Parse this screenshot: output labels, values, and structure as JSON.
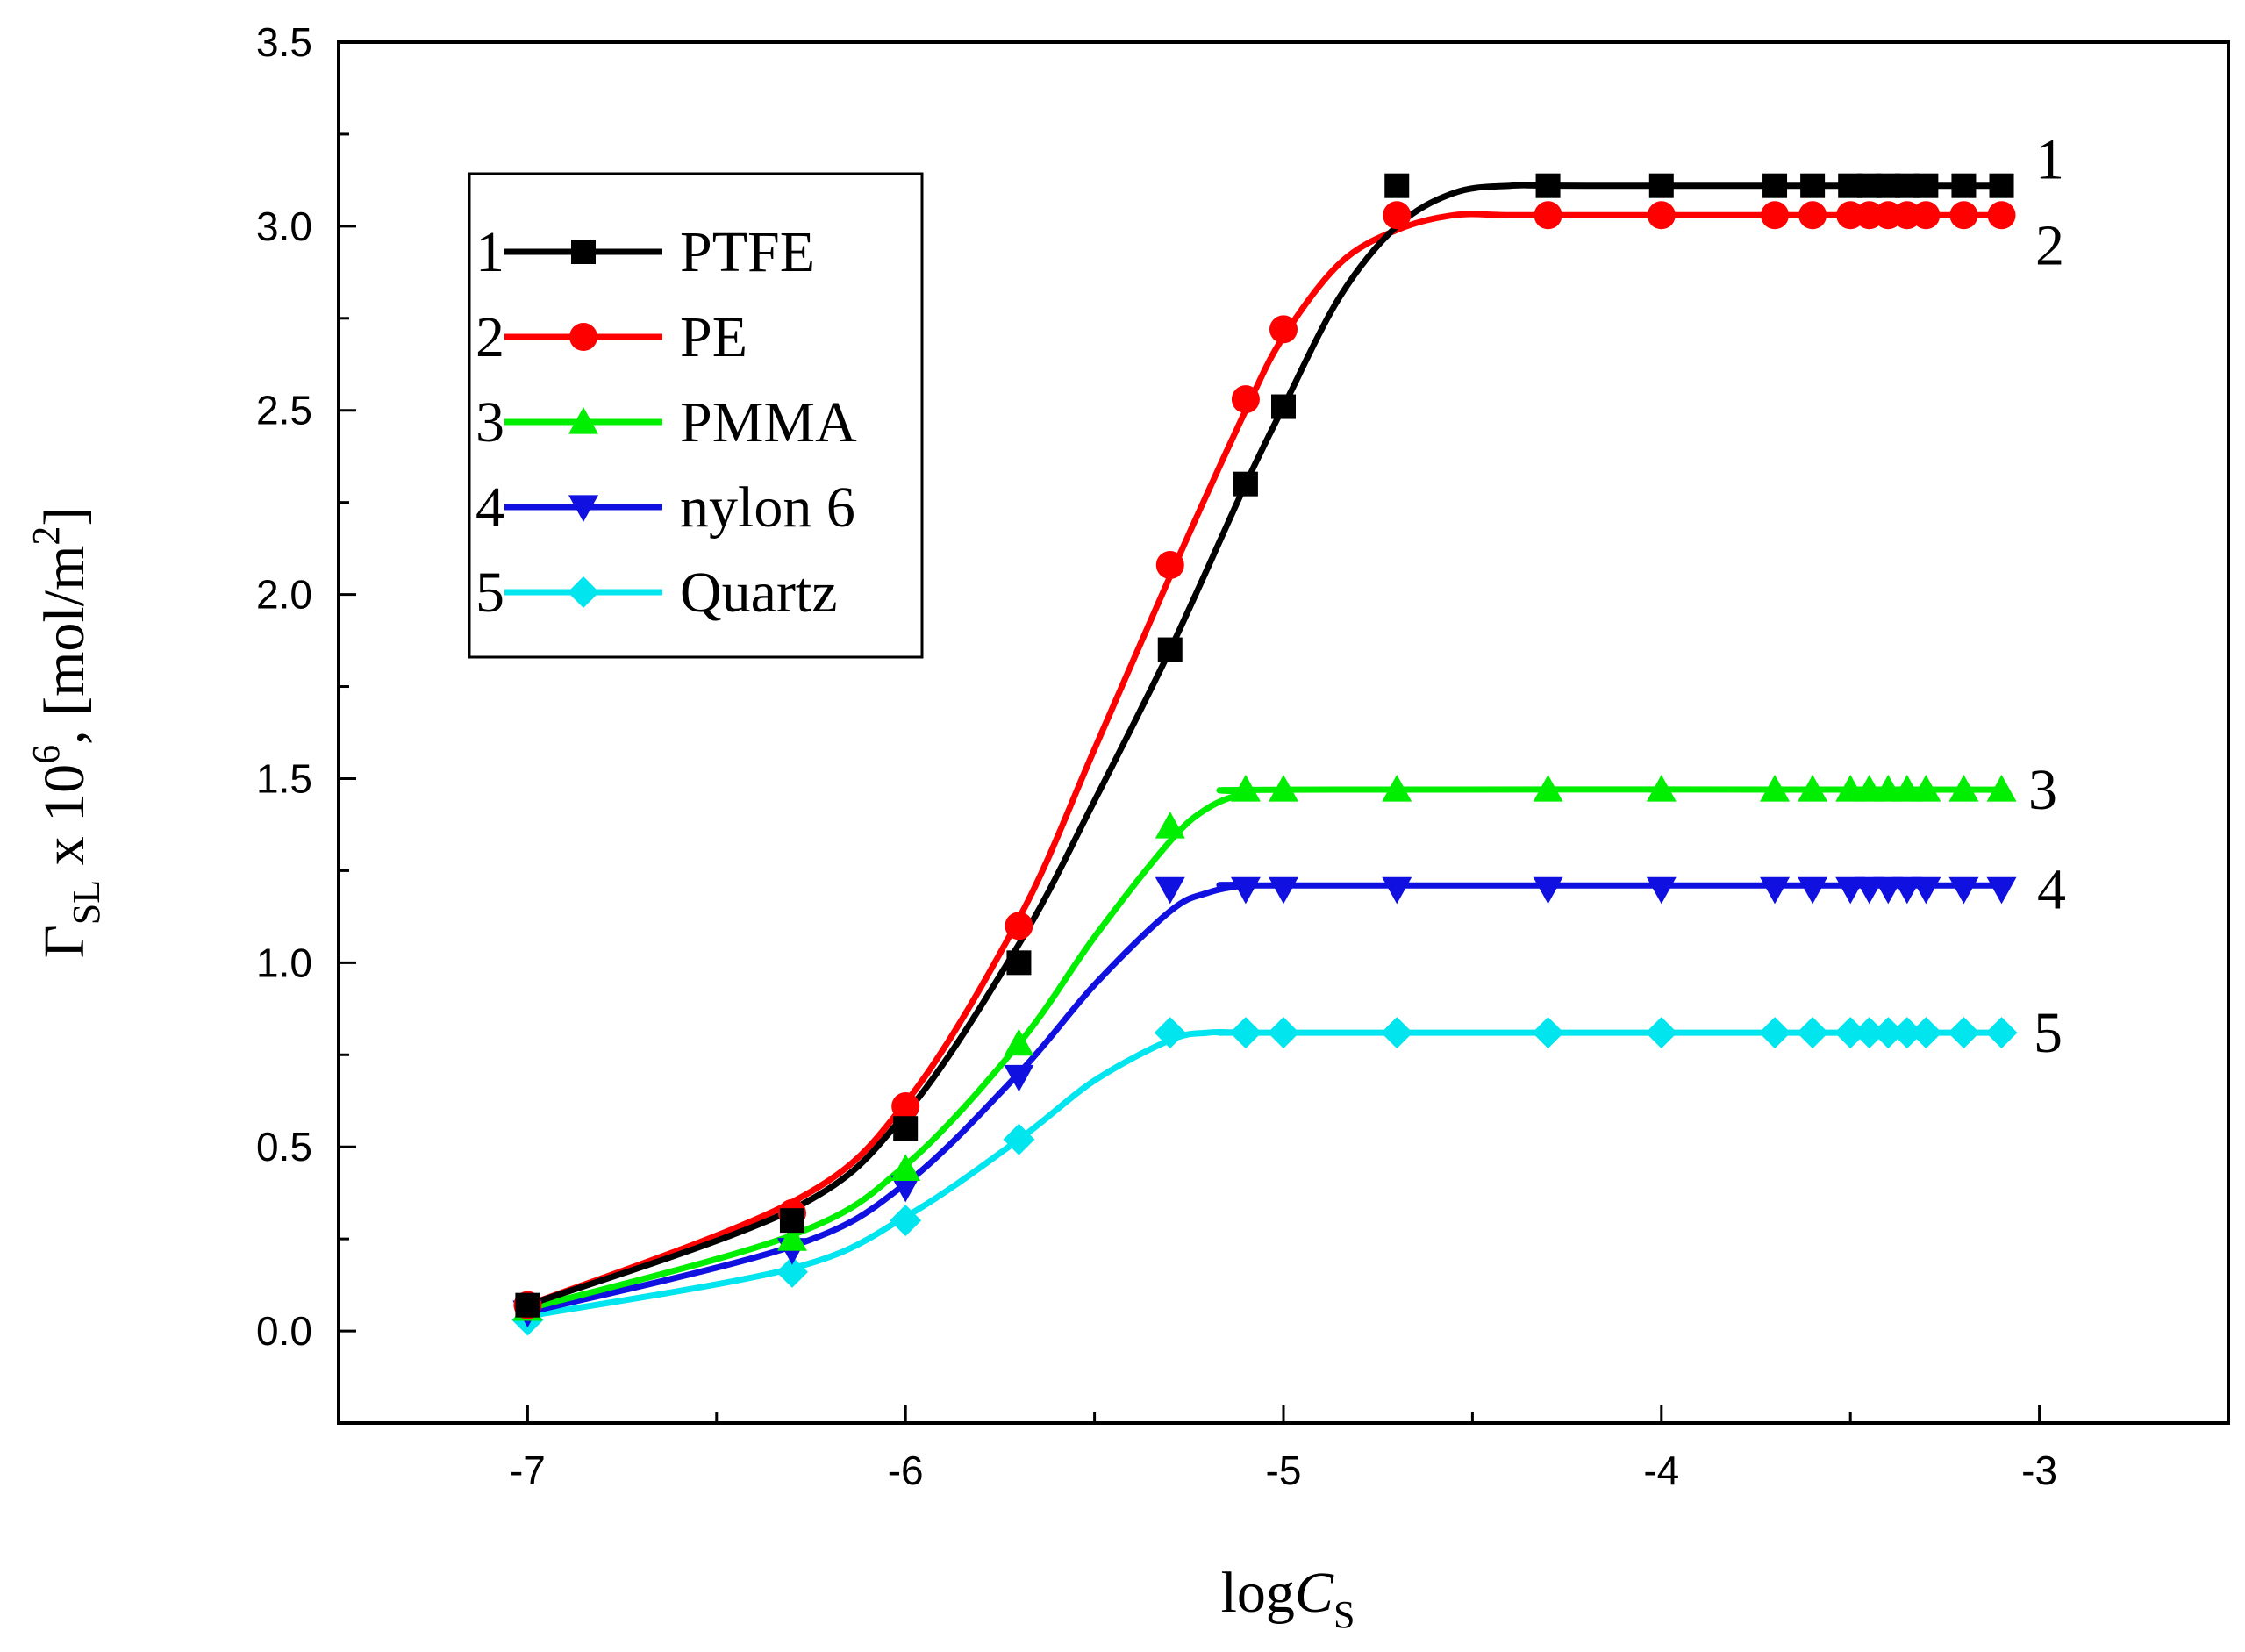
{
  "chart_data": {
    "type": "line",
    "xlabel": {
      "main": "log",
      "italic": "C",
      "sub": "S"
    },
    "ylabel": {
      "gamma": "Γ",
      "sub": "SL",
      "mid": " x 10",
      "exp": "6",
      "unit": ", [mol/m",
      "unit_exp": "2",
      "close": "]"
    },
    "xlim": [
      -7.5,
      -2.5
    ],
    "ylim": [
      -0.25,
      3.5
    ],
    "xticks": [
      -7,
      -6,
      -5,
      -4,
      -3
    ],
    "xtick_labels": [
      "-7",
      "-6",
      "-5",
      "-4",
      "-3"
    ],
    "yticks": [
      0.0,
      0.5,
      1.0,
      1.5,
      2.0,
      2.5,
      3.0,
      3.5
    ],
    "ytick_labels": [
      "0.0",
      "0.5",
      "1.0",
      "1.5",
      "2.0",
      "2.5",
      "3.0",
      "3.5"
    ],
    "x_minor_step": 0.5,
    "y_minor_step": 0.25,
    "grid": false,
    "legend_position": "top-left",
    "series": [
      {
        "id": "1",
        "name": "PTFE",
        "color": "#000000",
        "marker": "square",
        "x": [
          -7,
          -6.3,
          -6,
          -5.7,
          -5.3,
          -5.1,
          -5,
          -4.7,
          -4.3,
          -4,
          -3.7,
          -3.6,
          -3.5,
          -3.45,
          -3.4,
          -3.35,
          -3.3,
          -3.2,
          -3.1
        ],
        "y": [
          0.07,
          0.3,
          0.55,
          1.0,
          1.85,
          2.3,
          2.51,
          3.11,
          3.11,
          3.11,
          3.11,
          3.11,
          3.11,
          3.11,
          3.11,
          3.11,
          3.11,
          3.11,
          3.11
        ],
        "curve_x": [
          -7,
          -6.3,
          -6,
          -5.7,
          -5.5,
          -5.3,
          -5.1,
          -5,
          -4.85,
          -4.7,
          -4.55,
          -4.4,
          -4.2,
          -3.1
        ],
        "curve_y": [
          0.07,
          0.33,
          0.59,
          1.05,
          1.44,
          1.85,
          2.3,
          2.51,
          2.81,
          3.0,
          3.09,
          3.11,
          3.11,
          3.11
        ]
      },
      {
        "id": "2",
        "name": "PE",
        "color": "#ff0000",
        "marker": "circle",
        "x": [
          -7,
          -6.3,
          -6,
          -5.7,
          -5.3,
          -5.1,
          -5,
          -4.7,
          -4.3,
          -4,
          -3.7,
          -3.6,
          -3.5,
          -3.45,
          -3.4,
          -3.35,
          -3.3,
          -3.2,
          -3.1
        ],
        "y": [
          0.07,
          0.32,
          0.61,
          1.1,
          2.08,
          2.53,
          2.72,
          3.03,
          3.03,
          3.03,
          3.03,
          3.03,
          3.03,
          3.03,
          3.03,
          3.03,
          3.03,
          3.03,
          3.03
        ],
        "curve_x": [
          -7,
          -6.3,
          -6,
          -5.7,
          -5.5,
          -5.3,
          -5.1,
          -5,
          -4.85,
          -4.7,
          -4.55,
          -4.4,
          -4.2,
          -3.1
        ],
        "curve_y": [
          0.07,
          0.35,
          0.62,
          1.12,
          1.58,
          2.05,
          2.5,
          2.7,
          2.9,
          2.99,
          3.03,
          3.03,
          3.03,
          3.03
        ]
      },
      {
        "id": "3",
        "name": "PMMA",
        "color": "#00ee00",
        "marker": "triangle-up",
        "x": [
          -7,
          -6.3,
          -6,
          -5.7,
          -5.3,
          -5.1,
          -5,
          -4.7,
          -4.3,
          -4,
          -3.7,
          -3.6,
          -3.5,
          -3.45,
          -3.4,
          -3.35,
          -3.3,
          -3.2,
          -3.1
        ],
        "y": [
          0.06,
          0.25,
          0.44,
          0.78,
          1.37,
          1.47,
          1.47,
          1.47,
          1.47,
          1.47,
          1.47,
          1.47,
          1.47,
          1.47,
          1.47,
          1.47,
          1.47,
          1.47,
          1.47
        ],
        "curve_x": [
          -7,
          -6.3,
          -6,
          -5.7,
          -5.5,
          -5.3,
          -5.2,
          -5.1,
          -5,
          -3.1
        ],
        "curve_y": [
          0.06,
          0.26,
          0.45,
          0.78,
          1.07,
          1.33,
          1.42,
          1.46,
          1.47,
          1.47
        ]
      },
      {
        "id": "4",
        "name": "nylon 6",
        "color": "#1010e0",
        "marker": "triangle-down",
        "x": [
          -7,
          -6.3,
          -6,
          -5.7,
          -5.3,
          -5.1,
          -5,
          -4.7,
          -4.3,
          -4,
          -3.7,
          -3.6,
          -3.5,
          -3.45,
          -3.4,
          -3.35,
          -3.3,
          -3.2,
          -3.1
        ],
        "y": [
          0.05,
          0.22,
          0.39,
          0.69,
          1.2,
          1.2,
          1.2,
          1.2,
          1.2,
          1.2,
          1.2,
          1.2,
          1.2,
          1.2,
          1.2,
          1.2,
          1.2,
          1.2,
          1.2
        ],
        "curve_x": [
          -7,
          -6.3,
          -6,
          -5.7,
          -5.5,
          -5.3,
          -5.2,
          -5.1,
          -5,
          -3.1
        ],
        "curve_y": [
          0.05,
          0.23,
          0.4,
          0.7,
          0.94,
          1.14,
          1.19,
          1.21,
          1.21,
          1.21
        ]
      },
      {
        "id": "5",
        "name": "Quartz",
        "color": "#00e5ee",
        "marker": "diamond",
        "x": [
          -7,
          -6.3,
          -6,
          -5.7,
          -5.3,
          -5.1,
          -5,
          -4.7,
          -4.3,
          -4,
          -3.7,
          -3.6,
          -3.5,
          -3.45,
          -3.4,
          -3.35,
          -3.3,
          -3.2,
          -3.1
        ],
        "y": [
          0.03,
          0.16,
          0.3,
          0.52,
          0.81,
          0.81,
          0.81,
          0.81,
          0.81,
          0.81,
          0.81,
          0.81,
          0.81,
          0.81,
          0.81,
          0.81,
          0.81,
          0.81,
          0.81
        ],
        "curve_x": [
          -7,
          -6.3,
          -6,
          -5.7,
          -5.5,
          -5.3,
          -5.2,
          -5.1,
          -5,
          -3.1
        ],
        "curve_y": [
          0.04,
          0.17,
          0.31,
          0.52,
          0.68,
          0.79,
          0.81,
          0.81,
          0.81,
          0.81
        ]
      }
    ]
  }
}
